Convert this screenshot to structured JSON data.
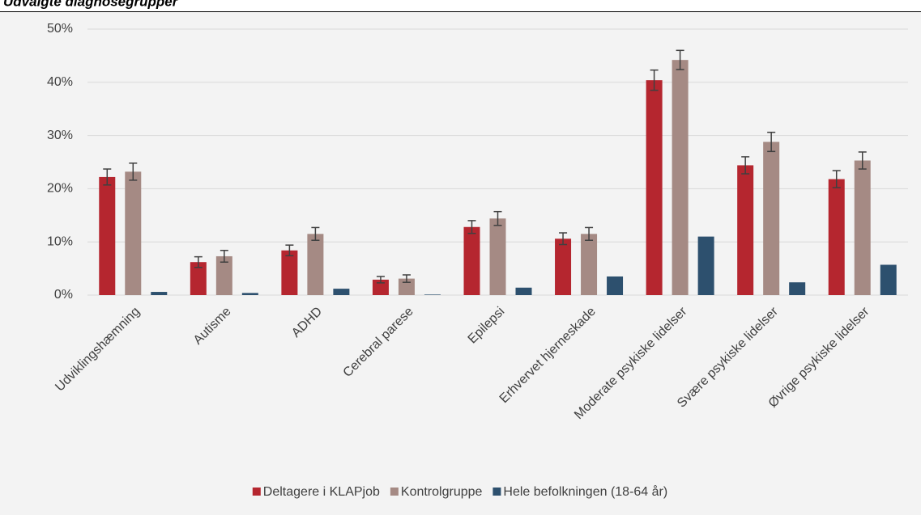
{
  "chart_data": {
    "type": "bar",
    "title": "Udvalgte diagnosegrupper",
    "categories": [
      "Udviklingshæmning",
      "Autisme",
      "ADHD",
      "Cerebral parese",
      "Epilepsi",
      "Erhvervet hjerneskade",
      "Moderate psykiske lidelser",
      "Svære psykiske lidelser",
      "Øvrige psykiske lidelser"
    ],
    "series": [
      {
        "name": "Deltagere i KLAPjob",
        "color": "#b5262f",
        "values": [
          22.2,
          6.2,
          8.4,
          2.9,
          12.8,
          10.6,
          40.4,
          24.4,
          21.8
        ],
        "errors": [
          1.5,
          1.0,
          1.0,
          0.6,
          1.2,
          1.1,
          1.9,
          1.6,
          1.6
        ]
      },
      {
        "name": "Kontrolgruppe",
        "color": "#a58a84",
        "values": [
          23.2,
          7.3,
          11.5,
          3.1,
          14.4,
          11.5,
          44.2,
          28.8,
          25.3
        ],
        "errors": [
          1.6,
          1.1,
          1.2,
          0.7,
          1.3,
          1.2,
          1.8,
          1.8,
          1.6
        ]
      },
      {
        "name": "Hele befolkningen (18-64 år)",
        "color": "#2d506e",
        "values": [
          0.6,
          0.4,
          1.2,
          0.1,
          1.4,
          3.5,
          11.0,
          2.4,
          5.7
        ]
      }
    ],
    "ylim": [
      0,
      50
    ],
    "yticks": [
      {
        "value": 0,
        "label": "0%"
      },
      {
        "value": 10,
        "label": "10%"
      },
      {
        "value": 20,
        "label": "20%"
      },
      {
        "value": 30,
        "label": "30%"
      },
      {
        "value": 40,
        "label": "40%"
      },
      {
        "value": 50,
        "label": "50%"
      }
    ],
    "grid": true,
    "legend": "bottom"
  }
}
